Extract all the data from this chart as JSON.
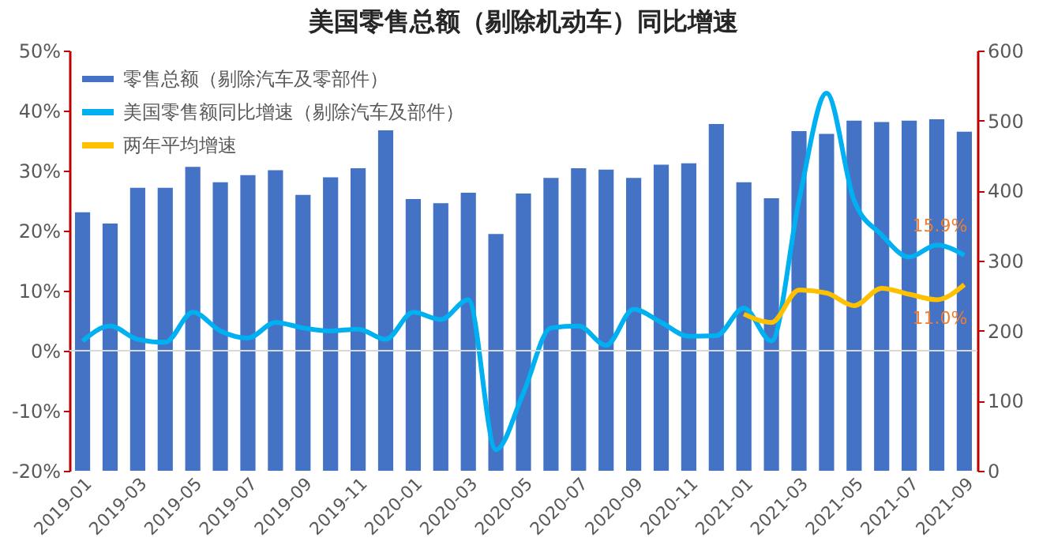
{
  "chart_data": {
    "type": "bar",
    "title": "美国零售总额（剔除机动车）同比增速",
    "categories": [
      "2019-01",
      null,
      "2019-03",
      null,
      "2019-05",
      null,
      "2019-07",
      null,
      "2019-09",
      null,
      "2019-11",
      null,
      "2020-01",
      null,
      "2020-03",
      null,
      "2020-05",
      null,
      "2020-07",
      null,
      "2020-09",
      null,
      "2020-11",
      null,
      "2021-01",
      null,
      "2021-03",
      null,
      "2021-05",
      null,
      "2021-07",
      null,
      "2021-09"
    ],
    "series": [
      {
        "name": "零售总额（剔除汽车及零部件）",
        "axis": "y2",
        "color": "#4472c4",
        "values": [
          369,
          353,
          404,
          404,
          434,
          412,
          422,
          429,
          394,
          419,
          432,
          486,
          388,
          382,
          397,
          338,
          396,
          418,
          432,
          430,
          418,
          437,
          439,
          495,
          412,
          389,
          485,
          481,
          500,
          498,
          500,
          502,
          484
        ]
      },
      {
        "name": "美国零售额同比增速（剔除汽车及部件）",
        "type": "line",
        "color": "#00b0f0",
        "values": [
          1.6,
          4.1,
          1.9,
          1.4,
          6.4,
          3.3,
          2.1,
          4.7,
          3.8,
          3.3,
          3.6,
          1.9,
          6.4,
          5.2,
          8.5,
          -16.5,
          -7,
          3.8,
          4.1,
          0.9,
          6.9,
          4.7,
          2.4,
          2.5,
          7.1,
          1.6,
          25,
          42.9,
          25,
          19.3,
          15.6,
          17.6,
          15.9
        ],
        "value_labels": [
          null,
          null,
          null,
          null,
          null,
          null,
          null,
          null,
          null,
          null,
          null,
          null,
          null,
          null,
          null,
          null,
          null,
          null,
          null,
          null,
          null,
          null,
          null,
          null,
          null,
          null,
          null,
          null,
          null,
          null,
          null,
          null,
          "15.9%"
        ]
      },
      {
        "name": "两年平均增速",
        "type": "line",
        "color": "#ffc000",
        "values": [
          null,
          null,
          null,
          null,
          null,
          null,
          null,
          null,
          null,
          null,
          null,
          null,
          null,
          null,
          null,
          null,
          null,
          null,
          null,
          null,
          null,
          null,
          null,
          null,
          6.1,
          4.7,
          10.1,
          9.6,
          7.5,
          10.4,
          9.4,
          8.5,
          11.0
        ],
        "value_labels": [
          null,
          null,
          null,
          null,
          null,
          null,
          null,
          null,
          null,
          null,
          null,
          null,
          null,
          null,
          null,
          null,
          null,
          null,
          null,
          null,
          null,
          null,
          null,
          null,
          null,
          null,
          null,
          null,
          null,
          null,
          null,
          null,
          "11.0%"
        ]
      }
    ],
    "ylim": [
      -20,
      50
    ],
    "yticks": [
      {
        "value": -20,
        "label": "-20%"
      },
      {
        "value": -10,
        "label": "-10%"
      },
      {
        "value": 0,
        "label": "0%"
      },
      {
        "value": 10,
        "label": "10%"
      },
      {
        "value": 20,
        "label": "20%"
      },
      {
        "value": 30,
        "label": "30%"
      },
      {
        "value": 40,
        "label": "40%"
      },
      {
        "value": 50,
        "label": "50%"
      }
    ],
    "y2lim": [
      0,
      600
    ],
    "y2ticks": [
      0,
      100,
      200,
      300,
      400,
      500,
      600
    ],
    "ref_lines": [
      {
        "axis": "y",
        "value": 0,
        "color": "#d9d9d9"
      }
    ],
    "grid": false,
    "legend": "top left",
    "marker": "none",
    "line_style": "solid"
  }
}
